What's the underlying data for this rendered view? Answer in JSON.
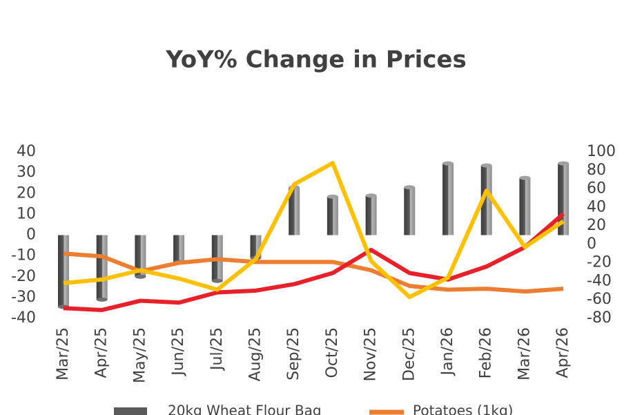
{
  "chart_data": {
    "type": "bar-line",
    "title": "YoY% Change in Prices",
    "categories": [
      "Mar/25",
      "Apr/25",
      "May/25",
      "Jun/25",
      "Jul/25",
      "Aug/25",
      "Sep/25",
      "Oct/25",
      "Nov/25",
      "Dec/25",
      "Jan/26",
      "Feb/26",
      "Mar/26",
      "Apr/26"
    ],
    "series": [
      {
        "name": "20kg Wheat Flour Bag",
        "type": "bar",
        "color": "#5a5a5a",
        "values": [
          -34.5,
          -31,
          -20,
          -13,
          -22,
          -11,
          23,
          18.5,
          19,
          23,
          34.5,
          33.5,
          27.5,
          34.5
        ]
      },
      {
        "name": "Potatoes (1kg)",
        "type": "line",
        "axis": "y2",
        "color": "#ed7d31",
        "values": [
          -10,
          -13,
          -29,
          -20,
          -16,
          -19,
          -19,
          -19,
          -28,
          -45,
          -49,
          -48,
          -51,
          -48
        ]
      },
      {
        "type": "line",
        "axis": "y2",
        "color": "#e8202a",
        "values": [
          -69,
          -71,
          -61,
          -63,
          -52,
          -50,
          -43,
          -31,
          -6,
          -31,
          -38,
          -24,
          -3,
          33
        ]
      },
      {
        "type": "line",
        "axis": "y2",
        "color": "#ffc000",
        "values": [
          -42,
          -38,
          -28,
          -37,
          -49,
          -16,
          65,
          88,
          -18,
          -57,
          -36,
          58,
          -3,
          25
        ]
      }
    ],
    "ylim": [
      -40,
      40
    ],
    "yticks": [
      -40,
      -30,
      -20,
      -10,
      0,
      10,
      20,
      30,
      40
    ],
    "y2lim": [
      -80,
      100
    ],
    "y2ticks": [
      -80,
      -60,
      -40,
      -20,
      0,
      20,
      40,
      60,
      80,
      100
    ]
  }
}
